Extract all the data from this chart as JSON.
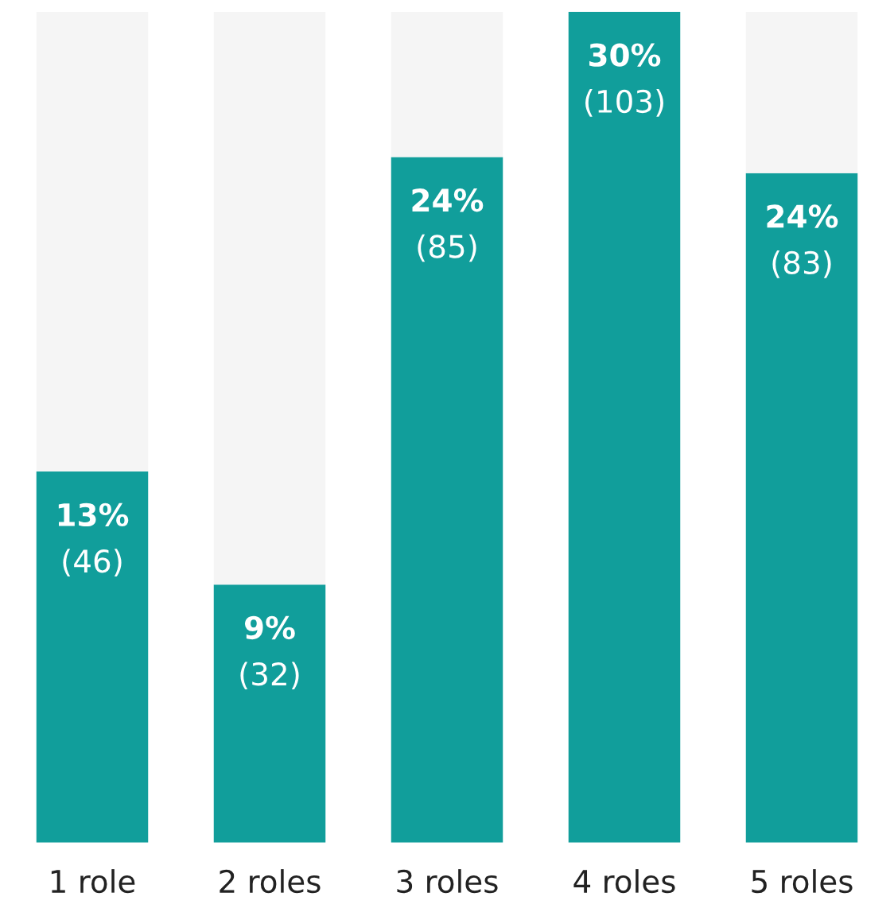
{
  "chart_data": {
    "type": "bar",
    "stacked": true,
    "categories": [
      "1 role",
      "2 roles",
      "3 roles",
      "4 roles",
      "5 roles"
    ],
    "series": [
      {
        "color": "#119e9b",
        "values": [
          46,
          32,
          85,
          103,
          83
        ],
        "value_labels": [
          "13%\n(46)",
          "9%\n(32)",
          "24%\n(85)",
          "30%\n(103)",
          "24%\n(83)"
        ]
      },
      {
        "color": "#f5f5f5",
        "values": [
          57,
          71,
          18,
          0,
          20
        ]
      }
    ],
    "tick_labels": "x",
    "grid": false,
    "legend": false
  }
}
